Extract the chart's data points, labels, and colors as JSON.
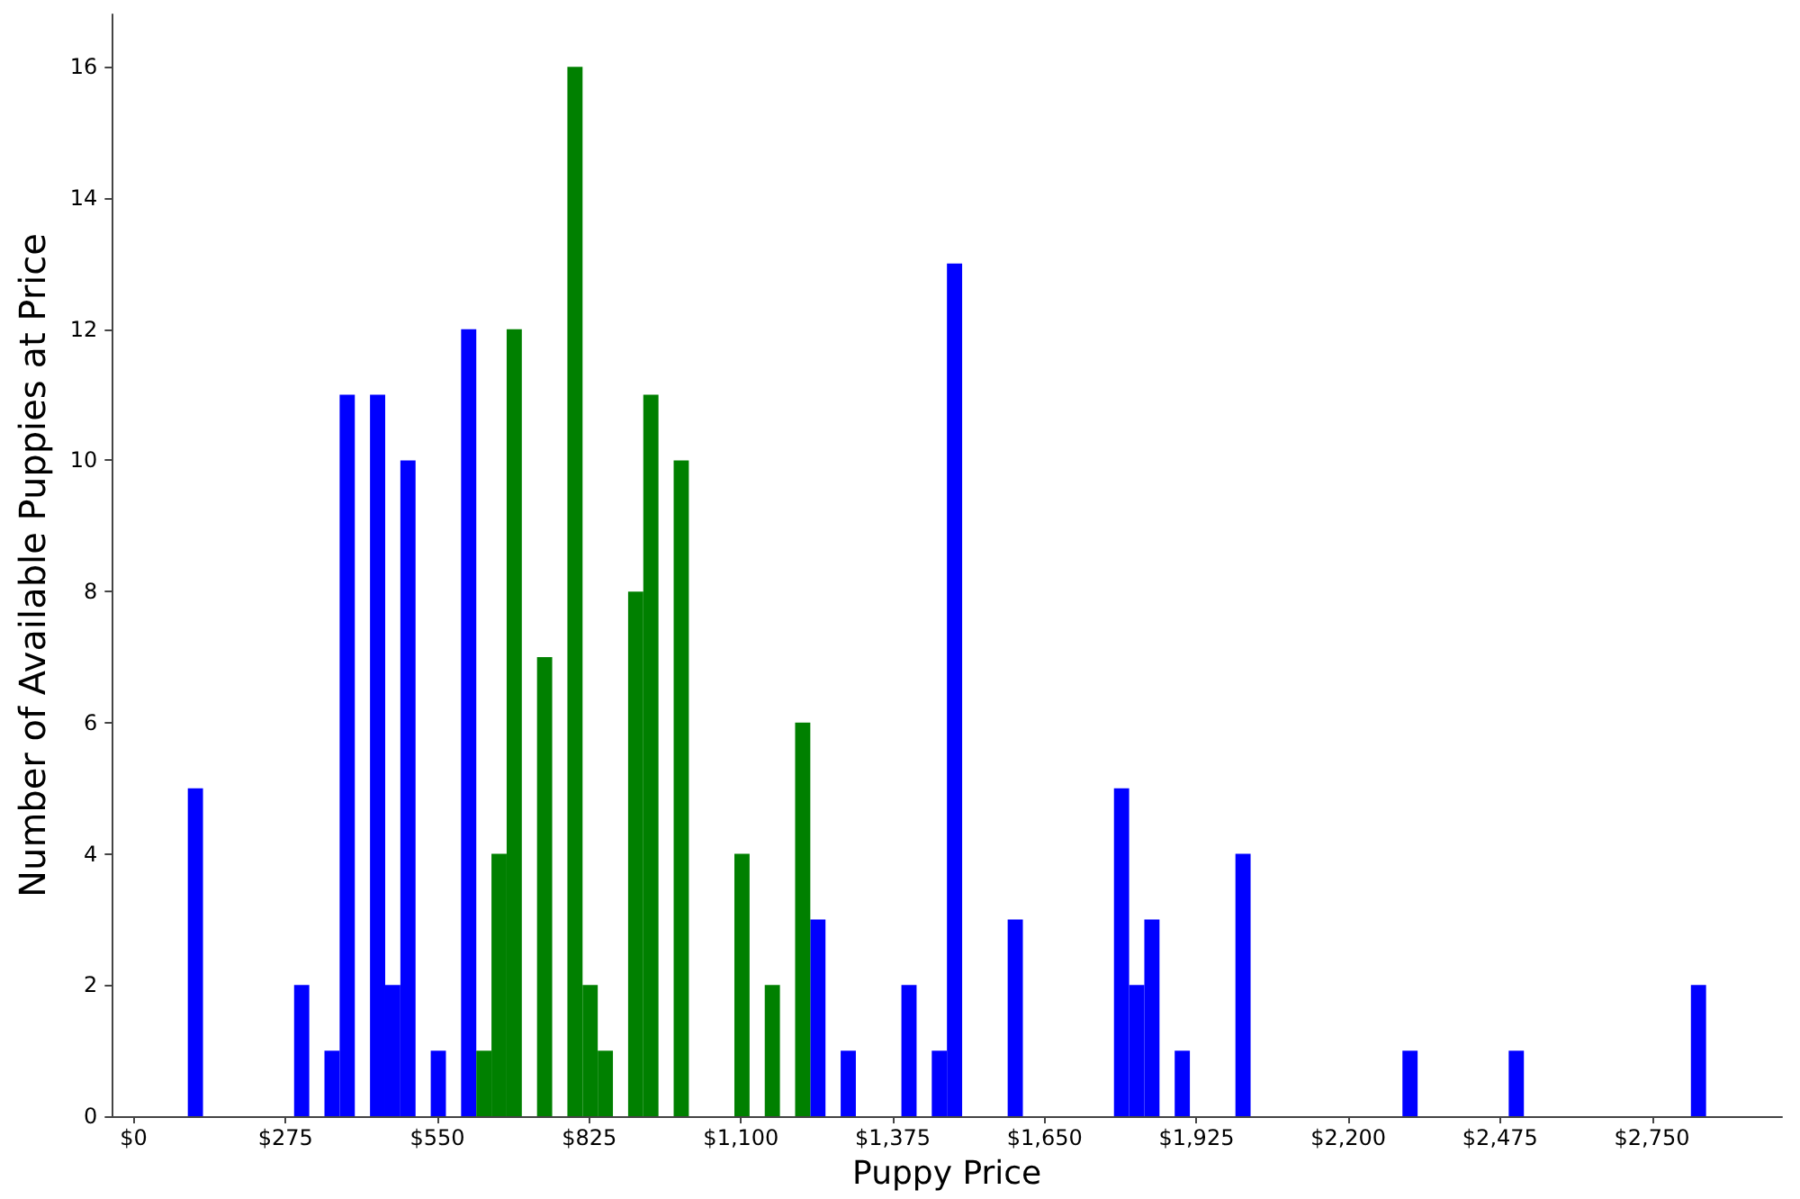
{
  "chart_data": {
    "type": "histogram",
    "xlabel": "Puppy Price",
    "ylabel": "Number of Available Puppies at Price",
    "bins": [
      98,
      125.5,
      153,
      180.5,
      208,
      235.5,
      263,
      290.5,
      318,
      345.5,
      373,
      400.5,
      428,
      455.5,
      483,
      510.5,
      538,
      565.5,
      593,
      620.5,
      648,
      675.5,
      703,
      730.5,
      758,
      785.5,
      813,
      840.5,
      868,
      895.5,
      923,
      950.5,
      978,
      1005.5,
      1033,
      1060.5,
      1088,
      1115.5,
      1143,
      1170.5,
      1198,
      1225.5,
      1253,
      1280.5,
      1308,
      1335.5,
      1363,
      1390.5,
      1418,
      1445.5,
      1473,
      1500.5,
      1528,
      1555.5,
      1583,
      1610.5,
      1638,
      1665.5,
      1693,
      1720.5,
      1748,
      1775.5,
      1803,
      1830.5,
      1858,
      1885.5,
      1913,
      1940.5,
      1968,
      1995.5,
      2023,
      2050.5,
      2078,
      2105.5,
      2133,
      2160.5,
      2188,
      2215.5,
      2243,
      2270.5,
      2298,
      2325.5,
      2353,
      2380.5,
      2408,
      2435.5,
      2463,
      2490.5,
      2518,
      2545.5,
      2573,
      2600.5,
      2628,
      2655.5,
      2683,
      2710.5,
      2738,
      2765.5,
      2793,
      2820.5,
      2848
    ],
    "series": [
      {
        "color": "#0000ff",
        "values": [
          5,
          0,
          0,
          0,
          0,
          0,
          0,
          2,
          0,
          1,
          11,
          0,
          11,
          2,
          10,
          0,
          1,
          0,
          12,
          null,
          null,
          null,
          null,
          null,
          null,
          null,
          null,
          null,
          null,
          null,
          null,
          null,
          null,
          null,
          null,
          null,
          null,
          null,
          null,
          null,
          null,
          3,
          0,
          1,
          0,
          0,
          0,
          2,
          0,
          1,
          13,
          0,
          0,
          0,
          3,
          0,
          0,
          0,
          0,
          0,
          0,
          5,
          2,
          3,
          0,
          1,
          0,
          0,
          0,
          4,
          0,
          0,
          0,
          0,
          0,
          0,
          0,
          0,
          0,
          0,
          1,
          0,
          0,
          0,
          0,
          0,
          0,
          1,
          0,
          0,
          0,
          0,
          0,
          0,
          0,
          0,
          0,
          0,
          0,
          2
        ]
      },
      {
        "color": "#008000",
        "values": [
          null,
          null,
          null,
          null,
          null,
          null,
          null,
          null,
          null,
          null,
          null,
          null,
          null,
          null,
          null,
          null,
          null,
          null,
          null,
          1,
          4,
          12,
          0,
          7,
          0,
          16,
          2,
          1,
          0,
          8,
          11,
          0,
          10,
          0,
          0,
          0,
          4,
          0,
          2,
          0,
          6,
          null,
          null,
          null,
          null,
          null,
          null,
          null,
          null,
          null,
          null,
          null,
          null,
          null,
          null,
          null,
          null,
          null,
          null,
          null,
          null,
          null,
          null,
          null,
          null,
          null,
          null,
          null,
          null,
          null,
          null,
          null,
          null,
          null,
          null,
          null,
          null,
          null,
          null,
          null,
          null,
          null,
          null,
          null,
          null,
          null,
          null,
          null,
          null,
          null,
          null,
          null,
          null,
          null,
          null,
          null,
          null,
          null,
          null,
          null
        ]
      }
    ],
    "xlim": [
      -39.5,
      2985.5
    ],
    "xticks": [
      {
        "value": 0,
        "label": "$0"
      },
      {
        "value": 275,
        "label": "$275"
      },
      {
        "value": 550,
        "label": "$550"
      },
      {
        "value": 825,
        "label": "$825"
      },
      {
        "value": 1100,
        "label": "$1,100"
      },
      {
        "value": 1375,
        "label": "$1,375"
      },
      {
        "value": 1650,
        "label": "$1,650"
      },
      {
        "value": 1925,
        "label": "$1,925"
      },
      {
        "value": 2200,
        "label": "$2,200"
      },
      {
        "value": 2475,
        "label": "$2,475"
      },
      {
        "value": 2750,
        "label": "$2,750"
      }
    ],
    "ylim": [
      0,
      16.8
    ],
    "yticks": [
      0,
      2,
      4,
      6,
      8,
      10,
      12,
      14,
      16
    ]
  }
}
